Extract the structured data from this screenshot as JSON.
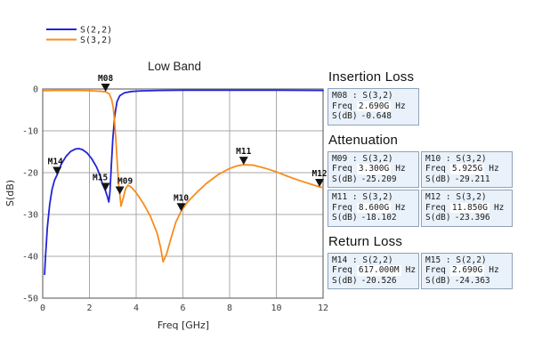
{
  "chart_data": {
    "type": "line",
    "title": "Low Band",
    "xlabel": "Freq [GHz]",
    "ylabel": "S(dB)",
    "xlim": [
      0,
      12
    ],
    "ylim": [
      -50,
      0
    ],
    "xticks": [
      0,
      2,
      4,
      6,
      8,
      10,
      12
    ],
    "yticks": [
      0,
      -10,
      -20,
      -30,
      -40,
      -50
    ],
    "grid": true,
    "legend_position": "top-left",
    "colors": {
      "grid": "#a8a8a8",
      "border": "#6e6e6e",
      "marker": "#141414"
    },
    "series": [
      {
        "name": "S(2,2)",
        "color": "#2323d7",
        "x": [
          0.08,
          0.12,
          0.2,
          0.3,
          0.4,
          0.5,
          0.617,
          0.8,
          1.0,
          1.2,
          1.4,
          1.55,
          1.7,
          1.9,
          2.1,
          2.3,
          2.45,
          2.55,
          2.62,
          2.69,
          2.76,
          2.83,
          2.88,
          2.93,
          3.0,
          3.08,
          3.18,
          3.3,
          3.5,
          3.8,
          4.2,
          5.0,
          6.0,
          8.0,
          10.0,
          12.0
        ],
        "y": [
          -44.3,
          -40.0,
          -33.0,
          -27.5,
          -24.0,
          -21.9,
          -20.5,
          -17.9,
          -16.1,
          -14.9,
          -14.35,
          -14.25,
          -14.5,
          -15.3,
          -16.7,
          -18.6,
          -20.6,
          -22.6,
          -23.5,
          -24.4,
          -25.6,
          -27.0,
          -24.5,
          -19.0,
          -12.0,
          -6.5,
          -3.0,
          -1.6,
          -0.9,
          -0.6,
          -0.45,
          -0.35,
          -0.3,
          -0.3,
          -0.3,
          -0.35
        ]
      },
      {
        "name": "S(3,2)",
        "color": "#f78c1e",
        "x": [
          0.05,
          0.5,
          1.0,
          1.5,
          2.0,
          2.3,
          2.5,
          2.69,
          2.85,
          2.95,
          3.02,
          3.08,
          3.14,
          3.2,
          3.26,
          3.3,
          3.35,
          3.45,
          3.55,
          3.65,
          3.8,
          4.0,
          4.3,
          4.6,
          4.9,
          5.05,
          5.15,
          5.3,
          5.5,
          5.7,
          5.925,
          6.2,
          6.6,
          7.0,
          7.5,
          8.0,
          8.3,
          8.6,
          9.0,
          9.5,
          10.0,
          10.5,
          11.0,
          11.5,
          11.85,
          12.0
        ],
        "y": [
          -0.4,
          -0.35,
          -0.35,
          -0.35,
          -0.4,
          -0.5,
          -0.55,
          -0.648,
          -1.2,
          -2.5,
          -4.5,
          -8.0,
          -13.0,
          -18.5,
          -23.5,
          -25.2,
          -28.0,
          -26.0,
          -23.8,
          -23.0,
          -23.5,
          -24.8,
          -27.3,
          -30.3,
          -34.5,
          -38.0,
          -41.3,
          -39.5,
          -35.5,
          -31.8,
          -29.2,
          -27.0,
          -24.7,
          -22.6,
          -20.5,
          -19.0,
          -18.4,
          -18.1,
          -18.2,
          -18.9,
          -19.8,
          -20.9,
          -21.9,
          -22.8,
          -23.4,
          -23.6
        ]
      }
    ],
    "markers": [
      {
        "id": "M08",
        "series": "S(3,2)",
        "freq_ghz": 2.69,
        "s_db": -0.648
      },
      {
        "id": "M09",
        "series": "S(3,2)",
        "freq_ghz": 3.3,
        "s_db": -25.209
      },
      {
        "id": "M10",
        "series": "S(3,2)",
        "freq_ghz": 5.925,
        "s_db": -29.211
      },
      {
        "id": "M11",
        "series": "S(3,2)",
        "freq_ghz": 8.6,
        "s_db": -18.102
      },
      {
        "id": "M12",
        "series": "S(3,2)",
        "freq_ghz": 11.85,
        "s_db": -23.396
      },
      {
        "id": "M14",
        "series": "S(2,2)",
        "freq_ghz": 0.617,
        "s_db": -20.526
      },
      {
        "id": "M15",
        "series": "S(2,2)",
        "freq_ghz": 2.69,
        "s_db": -24.363
      }
    ]
  },
  "box_labels": {
    "freq": "Freq",
    "unit": "Hz",
    "s": "S(dB)"
  },
  "panels": [
    {
      "heading": "Insertion Loss",
      "boxes": [
        {
          "id": "M08",
          "title": "M08 : S(3,2)",
          "freq_text": "2.690G",
          "s_db_text": "-0.648"
        }
      ]
    },
    {
      "heading": "Attenuation",
      "boxes": [
        {
          "id": "M09",
          "title": "M09 : S(3,2)",
          "freq_text": "3.300G",
          "s_db_text": "-25.209"
        },
        {
          "id": "M10",
          "title": "M10 : S(3,2)",
          "freq_text": "5.925G",
          "s_db_text": "-29.211"
        },
        {
          "id": "M11",
          "title": "M11 : S(3,2)",
          "freq_text": "8.600G",
          "s_db_text": "-18.102"
        },
        {
          "id": "M12",
          "title": "M12 : S(3,2)",
          "freq_text": "11.850G",
          "s_db_text": "-23.396"
        }
      ]
    },
    {
      "heading": "Return Loss",
      "boxes": [
        {
          "id": "M14",
          "title": "M14 : S(2,2)",
          "freq_text": "617.000M",
          "s_db_text": "-20.526"
        },
        {
          "id": "M15",
          "title": "M15 : S(2,2)",
          "freq_text": "2.690G",
          "s_db_text": "-24.363"
        }
      ]
    }
  ]
}
